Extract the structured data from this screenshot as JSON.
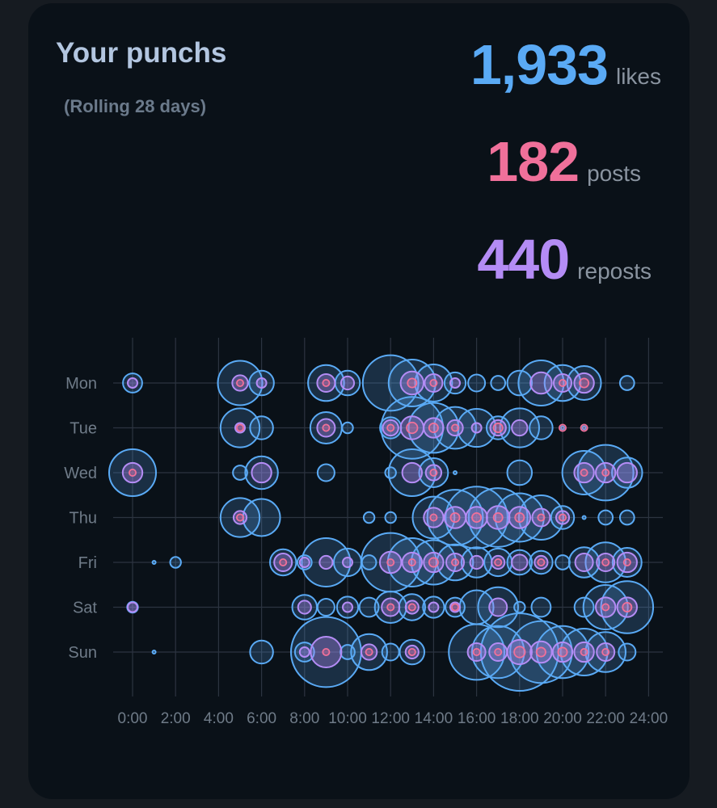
{
  "header": {
    "title": "Your punchs",
    "subtitle": "(Rolling 28 days)"
  },
  "stats": {
    "likes": {
      "value": "1,933",
      "unit": "likes",
      "color": "#5aaaf5"
    },
    "posts": {
      "value": "182",
      "unit": "posts",
      "color": "#f0709a"
    },
    "reposts": {
      "value": "440",
      "unit": "reposts",
      "color": "#b48cf5"
    }
  },
  "chart_data": {
    "type": "scatter",
    "x_ticks": [
      "0:00",
      "2:00",
      "4:00",
      "6:00",
      "8:00",
      "10:00",
      "12:00",
      "14:00",
      "16:00",
      "18:00",
      "20:00",
      "22:00",
      "24:00"
    ],
    "xlim": [
      0,
      24
    ],
    "y_categories": [
      "Mon",
      "Tue",
      "Wed",
      "Thu",
      "Fri",
      "Sat",
      "Sun"
    ],
    "grid": true,
    "series": [
      {
        "key": "likes",
        "color": "#5aaaf5"
      },
      {
        "key": "reposts",
        "color": "#b48cf5"
      },
      {
        "key": "posts",
        "color": "#f0709a"
      }
    ],
    "points": [
      {
        "day": "Mon",
        "hour": 0,
        "likes": 4,
        "reposts": 1,
        "posts": 0
      },
      {
        "day": "Mon",
        "hour": 5,
        "likes": 25,
        "reposts": 3,
        "posts": 1
      },
      {
        "day": "Mon",
        "hour": 6,
        "likes": 7,
        "reposts": 1,
        "posts": 0
      },
      {
        "day": "Mon",
        "hour": 9,
        "likes": 16,
        "reposts": 4,
        "posts": 1
      },
      {
        "day": "Mon",
        "hour": 10,
        "likes": 7,
        "reposts": 2,
        "posts": 0
      },
      {
        "day": "Mon",
        "hour": 12,
        "likes": 40,
        "reposts": 0,
        "posts": 0
      },
      {
        "day": "Mon",
        "hour": 13,
        "likes": 28,
        "reposts": 7,
        "posts": 2
      },
      {
        "day": "Mon",
        "hour": 14,
        "likes": 17,
        "reposts": 4,
        "posts": 1
      },
      {
        "day": "Mon",
        "hour": 15,
        "likes": 5,
        "reposts": 1,
        "posts": 0
      },
      {
        "day": "Mon",
        "hour": 16,
        "likes": 3,
        "reposts": 0,
        "posts": 0
      },
      {
        "day": "Mon",
        "hour": 17,
        "likes": 2,
        "reposts": 0,
        "posts": 0
      },
      {
        "day": "Mon",
        "hour": 18,
        "likes": 7,
        "reposts": 0,
        "posts": 0
      },
      {
        "day": "Mon",
        "hour": 19,
        "likes": 26,
        "reposts": 6,
        "posts": 0
      },
      {
        "day": "Mon",
        "hour": 20,
        "likes": 16,
        "reposts": 4,
        "posts": 1
      },
      {
        "day": "Mon",
        "hour": 21,
        "likes": 14,
        "reposts": 5,
        "posts": 2
      },
      {
        "day": "Mon",
        "hour": 23,
        "likes": 2,
        "reposts": 0,
        "posts": 0
      },
      {
        "day": "Tue",
        "hour": 5,
        "likes": 19,
        "reposts": 1,
        "posts": 1
      },
      {
        "day": "Tue",
        "hour": 6,
        "likes": 6,
        "reposts": 0,
        "posts": 0
      },
      {
        "day": "Tue",
        "hour": 9,
        "likes": 12,
        "reposts": 4,
        "posts": 1
      },
      {
        "day": "Tue",
        "hour": 10,
        "likes": 1,
        "reposts": 0,
        "posts": 0
      },
      {
        "day": "Tue",
        "hour": 12,
        "likes": 5,
        "reposts": 3,
        "posts": 1
      },
      {
        "day": "Tue",
        "hour": 13,
        "likes": 50,
        "reposts": 7,
        "posts": 3
      },
      {
        "day": "Tue",
        "hour": 14,
        "likes": 32,
        "reposts": 5,
        "posts": 2
      },
      {
        "day": "Tue",
        "hour": 15,
        "likes": 22,
        "reposts": 3,
        "posts": 1
      },
      {
        "day": "Tue",
        "hour": 16,
        "likes": 18,
        "reposts": 1,
        "posts": 0
      },
      {
        "day": "Tue",
        "hour": 17,
        "likes": 6,
        "reposts": 3,
        "posts": 2
      },
      {
        "day": "Tue",
        "hour": 18,
        "likes": 19,
        "reposts": 3,
        "posts": 0
      },
      {
        "day": "Tue",
        "hour": 19,
        "likes": 6,
        "reposts": 0,
        "posts": 0
      },
      {
        "day": "Tue",
        "hour": 20,
        "likes": 0,
        "reposts": 0,
        "posts": 1
      },
      {
        "day": "Tue",
        "hour": 21,
        "likes": 0,
        "reposts": 0,
        "posts": 1
      },
      {
        "day": "Wed",
        "hour": 0,
        "likes": 28,
        "reposts": 5,
        "posts": 1
      },
      {
        "day": "Wed",
        "hour": 5,
        "likes": 2,
        "reposts": 0,
        "posts": 0
      },
      {
        "day": "Wed",
        "hour": 6,
        "likes": 13,
        "reposts": 5,
        "posts": 0
      },
      {
        "day": "Wed",
        "hour": 9,
        "likes": 3,
        "reposts": 0,
        "posts": 0
      },
      {
        "day": "Wed",
        "hour": 12,
        "likes": 1,
        "reposts": 0,
        "posts": 0
      },
      {
        "day": "Wed",
        "hour": 13,
        "likes": 28,
        "reposts": 5,
        "posts": 0
      },
      {
        "day": "Wed",
        "hour": 14,
        "likes": 10,
        "reposts": 3,
        "posts": 1
      },
      {
        "day": "Wed",
        "hour": 15,
        "likes": 0,
        "reposts": 0,
        "posts": 0
      },
      {
        "day": "Wed",
        "hour": 18,
        "likes": 7,
        "reposts": 0,
        "posts": 0
      },
      {
        "day": "Wed",
        "hour": 21,
        "likes": 24,
        "reposts": 5,
        "posts": 1
      },
      {
        "day": "Wed",
        "hour": 22,
        "likes": 40,
        "reposts": 5,
        "posts": 1
      },
      {
        "day": "Wed",
        "hour": 23,
        "likes": 11,
        "reposts": 5,
        "posts": 0
      },
      {
        "day": "Thu",
        "hour": 5,
        "likes": 19,
        "reposts": 2,
        "posts": 1
      },
      {
        "day": "Thu",
        "hour": 6,
        "likes": 17,
        "reposts": 0,
        "posts": 0
      },
      {
        "day": "Thu",
        "hour": 11,
        "likes": 1,
        "reposts": 0,
        "posts": 0
      },
      {
        "day": "Thu",
        "hour": 12,
        "likes": 1,
        "reposts": 0,
        "posts": 0
      },
      {
        "day": "Thu",
        "hour": 14,
        "likes": 22,
        "reposts": 5,
        "posts": 1
      },
      {
        "day": "Thu",
        "hour": 15,
        "likes": 40,
        "reposts": 6,
        "posts": 2
      },
      {
        "day": "Thu",
        "hour": 16,
        "likes": 50,
        "reposts": 6,
        "posts": 2
      },
      {
        "day": "Thu",
        "hour": 17,
        "likes": 45,
        "reposts": 7,
        "posts": 2
      },
      {
        "day": "Thu",
        "hour": 18,
        "likes": 30,
        "reposts": 6,
        "posts": 2
      },
      {
        "day": "Thu",
        "hour": 19,
        "likes": 25,
        "reposts": 4,
        "posts": 1
      },
      {
        "day": "Thu",
        "hour": 20,
        "likes": 6,
        "reposts": 2,
        "posts": 1
      },
      {
        "day": "Thu",
        "hour": 21,
        "likes": 0,
        "reposts": 0,
        "posts": 0
      },
      {
        "day": "Thu",
        "hour": 22,
        "likes": 2,
        "reposts": 0,
        "posts": 0
      },
      {
        "day": "Thu",
        "hour": 23,
        "likes": 2,
        "reposts": 0,
        "posts": 0
      },
      {
        "day": "Fri",
        "hour": 1,
        "likes": 0,
        "reposts": 0,
        "posts": 0
      },
      {
        "day": "Fri",
        "hour": 2,
        "likes": 1,
        "reposts": 0,
        "posts": 0
      },
      {
        "day": "Fri",
        "hour": 7,
        "likes": 8,
        "reposts": 4,
        "posts": 1
      },
      {
        "day": "Fri",
        "hour": 8,
        "likes": 2,
        "reposts": 1,
        "posts": 0
      },
      {
        "day": "Fri",
        "hour": 9,
        "likes": 30,
        "reposts": 2,
        "posts": 0
      },
      {
        "day": "Fri",
        "hour": 10,
        "likes": 9,
        "reposts": 1,
        "posts": 0
      },
      {
        "day": "Fri",
        "hour": 11,
        "likes": 2,
        "reposts": 0,
        "posts": 0
      },
      {
        "day": "Fri",
        "hour": 12,
        "likes": 45,
        "reposts": 6,
        "posts": 1
      },
      {
        "day": "Fri",
        "hour": 13,
        "likes": 30,
        "reposts": 5,
        "posts": 1
      },
      {
        "day": "Fri",
        "hour": 14,
        "likes": 25,
        "reposts": 5,
        "posts": 2
      },
      {
        "day": "Fri",
        "hour": 15,
        "likes": 16,
        "reposts": 4,
        "posts": 1
      },
      {
        "day": "Fri",
        "hour": 16,
        "likes": 11,
        "reposts": 2,
        "posts": 0
      },
      {
        "day": "Fri",
        "hour": 17,
        "likes": 9,
        "reposts": 2,
        "posts": 1
      },
      {
        "day": "Fri",
        "hour": 18,
        "likes": 7,
        "reposts": 3,
        "posts": 0
      },
      {
        "day": "Fri",
        "hour": 19,
        "likes": 6,
        "reposts": 2,
        "posts": 1
      },
      {
        "day": "Fri",
        "hour": 20,
        "likes": 2,
        "reposts": 0,
        "posts": 0
      },
      {
        "day": "Fri",
        "hour": 21,
        "likes": 11,
        "reposts": 4,
        "posts": 0
      },
      {
        "day": "Fri",
        "hour": 22,
        "likes": 20,
        "reposts": 4,
        "posts": 1
      },
      {
        "day": "Fri",
        "hour": 23,
        "likes": 10,
        "reposts": 5,
        "posts": 1
      },
      {
        "day": "Sat",
        "hour": 0,
        "likes": 1,
        "reposts": 1,
        "posts": 0
      },
      {
        "day": "Sat",
        "hour": 8,
        "likes": 7,
        "reposts": 2,
        "posts": 0
      },
      {
        "day": "Sat",
        "hour": 9,
        "likes": 3,
        "reposts": 0,
        "posts": 0
      },
      {
        "day": "Sat",
        "hour": 10,
        "likes": 5,
        "reposts": 1,
        "posts": 0
      },
      {
        "day": "Sat",
        "hour": 11,
        "likes": 4,
        "reposts": 0,
        "posts": 0
      },
      {
        "day": "Sat",
        "hour": 12,
        "likes": 12,
        "reposts": 4,
        "posts": 1
      },
      {
        "day": "Sat",
        "hour": 13,
        "likes": 8,
        "reposts": 2,
        "posts": 1
      },
      {
        "day": "Sat",
        "hour": 14,
        "likes": 5,
        "reposts": 1,
        "posts": 0
      },
      {
        "day": "Sat",
        "hour": 15,
        "likes": 4,
        "reposts": 1,
        "posts": 1
      },
      {
        "day": "Sat",
        "hour": 16,
        "likes": 14,
        "reposts": 0,
        "posts": 0
      },
      {
        "day": "Sat",
        "hour": 17,
        "likes": 20,
        "reposts": 4,
        "posts": 0
      },
      {
        "day": "Sat",
        "hour": 18,
        "likes": 1,
        "reposts": 0,
        "posts": 0
      },
      {
        "day": "Sat",
        "hour": 19,
        "likes": 4,
        "reposts": 0,
        "posts": 0
      },
      {
        "day": "Sat",
        "hour": 21,
        "likes": 4,
        "reposts": 0,
        "posts": 0
      },
      {
        "day": "Sat",
        "hour": 22,
        "likes": 25,
        "reposts": 5,
        "posts": 1
      },
      {
        "day": "Sat",
        "hour": 23,
        "likes": 35,
        "reposts": 5,
        "posts": 2
      },
      {
        "day": "Sun",
        "hour": 1,
        "likes": 0,
        "reposts": 0,
        "posts": 0
      },
      {
        "day": "Sun",
        "hour": 6,
        "likes": 6,
        "reposts": 0,
        "posts": 0
      },
      {
        "day": "Sun",
        "hour": 8,
        "likes": 4,
        "reposts": 1,
        "posts": 0
      },
      {
        "day": "Sun",
        "hour": 9,
        "likes": 65,
        "reposts": 13,
        "posts": 1
      },
      {
        "day": "Sun",
        "hour": 10,
        "likes": 2,
        "reposts": 0,
        "posts": 0
      },
      {
        "day": "Sun",
        "hour": 11,
        "likes": 16,
        "reposts": 3,
        "posts": 1
      },
      {
        "day": "Sun",
        "hour": 12,
        "likes": 3,
        "reposts": 0,
        "posts": 0
      },
      {
        "day": "Sun",
        "hour": 13,
        "likes": 7,
        "reposts": 2,
        "posts": 1
      },
      {
        "day": "Sun",
        "hour": 16,
        "likes": 40,
        "reposts": 4,
        "posts": 1
      },
      {
        "day": "Sun",
        "hour": 17,
        "likes": 35,
        "reposts": 4,
        "posts": 1
      },
      {
        "day": "Sun",
        "hour": 18,
        "likes": 80,
        "reposts": 8,
        "posts": 3
      },
      {
        "day": "Sun",
        "hour": 19,
        "likes": 50,
        "reposts": 6,
        "posts": 2
      },
      {
        "day": "Sun",
        "hour": 20,
        "likes": 35,
        "reposts": 5,
        "posts": 2
      },
      {
        "day": "Sun",
        "hour": 21,
        "likes": 28,
        "reposts": 5,
        "posts": 1
      },
      {
        "day": "Sun",
        "hour": 22,
        "likes": 20,
        "reposts": 4,
        "posts": 1
      },
      {
        "day": "Sun",
        "hour": 23,
        "likes": 3,
        "reposts": 0,
        "posts": 0
      }
    ]
  }
}
